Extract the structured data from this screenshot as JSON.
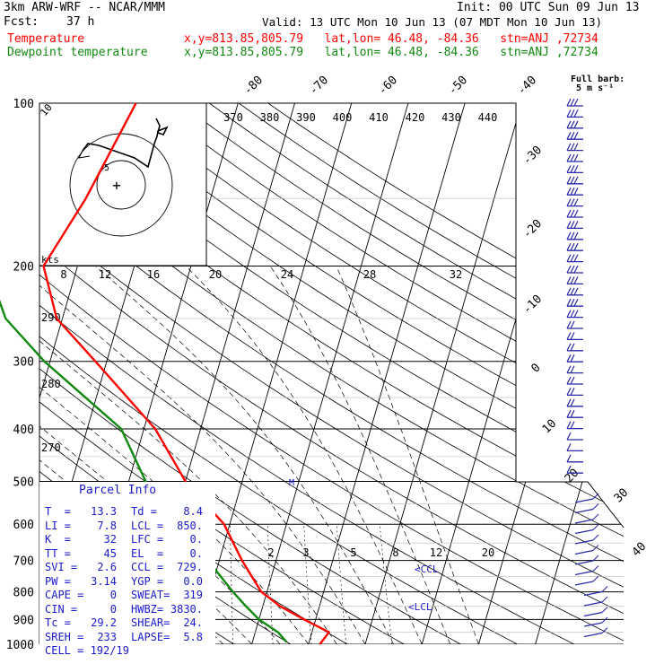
{
  "header": {
    "model": "3km ARW-WRF -- NCAR/MMM",
    "fcst_label": "Fcst:",
    "fcst_value": "37 h",
    "init": "Init: 00 UTC Sun 09 Jun 13",
    "valid": "Valid: 13 UTC Mon 10 Jun 13 (07 MDT Mon 10 Jun 13)",
    "temp_label": "Temperature",
    "dew_label": "Dewpoint temperature",
    "loc_line": "x,y=813.85,805.79   lat,lon= 46.48, -84.36   stn=ANJ ,72734",
    "barb_note_1": "Full barb:",
    "barb_note_2": "5 m s⁻¹"
  },
  "colors": {
    "temperature": "#ff0000",
    "dewpoint": "#118811",
    "blue": "#1a1acc",
    "wind": "#2a2aaa"
  },
  "chart_data": {
    "type": "line",
    "title": "",
    "y_scale": "log-pressure",
    "pressure_levels": [
      "100",
      "200",
      "300",
      "400",
      "500",
      "600",
      "700",
      "800",
      "900",
      "1000"
    ],
    "isotherm_labels": [
      "-80",
      "-70",
      "-60",
      "-50",
      "-40",
      "-30",
      "-20",
      "-10",
      "0",
      "10",
      "20",
      "30",
      "40"
    ],
    "theta_labels": [
      "370",
      "380",
      "390",
      "400",
      "410",
      "420",
      "430",
      "440"
    ],
    "theta_left_labels": [
      "290",
      "280",
      "270"
    ],
    "mixing_upper_labels": [
      "8",
      "12",
      "16",
      "20",
      "24",
      "28",
      "32"
    ],
    "mixing_lower_labels": [
      "2",
      "3",
      "5",
      "8",
      "12",
      "20"
    ],
    "hodo_units": "kts",
    "hodo_rings": [
      "5",
      "10"
    ],
    "level_marks": [
      "CCL",
      "LCL",
      "M"
    ],
    "series": [
      {
        "name": "Temperature",
        "points": [
          {
            "p": 1000,
            "t": 12
          },
          {
            "p": 950,
            "t": 13
          },
          {
            "p": 900,
            "t": 8
          },
          {
            "p": 850,
            "t": 3
          },
          {
            "p": 800,
            "t": -1
          },
          {
            "p": 700,
            "t": -6
          },
          {
            "p": 600,
            "t": -11
          },
          {
            "p": 500,
            "t": -20
          },
          {
            "p": 400,
            "t": -28
          },
          {
            "p": 300,
            "t": -42
          },
          {
            "p": 250,
            "t": -51
          },
          {
            "p": 200,
            "t": -56
          },
          {
            "p": 150,
            "t": -52
          },
          {
            "p": 100,
            "t": -48
          }
        ]
      },
      {
        "name": "Dewpoint temperature",
        "points": [
          {
            "p": 990,
            "t": 6
          },
          {
            "p": 950,
            "t": 4
          },
          {
            "p": 900,
            "t": 0
          },
          {
            "p": 850,
            "t": -3
          },
          {
            "p": 800,
            "t": -6
          },
          {
            "p": 700,
            "t": -12
          },
          {
            "p": 650,
            "t": -20
          },
          {
            "p": 600,
            "t": -38
          },
          {
            "p": 550,
            "t": -33
          },
          {
            "p": 500,
            "t": -27
          },
          {
            "p": 400,
            "t": -34
          },
          {
            "p": 300,
            "t": -51
          },
          {
            "p": 250,
            "t": -60
          },
          {
            "p": 200,
            "t": -66
          },
          {
            "p": 150,
            "t": -76
          },
          {
            "p": 100,
            "t": -82
          }
        ]
      }
    ]
  },
  "parcel_info": {
    "title": "Parcel Info",
    "rows": [
      {
        "a": "T  =",
        "av": "13.3",
        "b": "Td =",
        "bv": "8.4"
      },
      {
        "a": "LI =",
        "av": "7.8",
        "b": "LCL =",
        "bv": "850."
      },
      {
        "a": "K  =",
        "av": "32",
        "b": "LFC =",
        "bv": "0."
      },
      {
        "a": "TT =",
        "av": "45",
        "b": "EL  =",
        "bv": "0."
      },
      {
        "a": "SVI =",
        "av": "2.6",
        "b": "CCL =",
        "bv": "729."
      },
      {
        "a": "PW =",
        "av": "3.14",
        "b": "YGP =",
        "bv": "0.0"
      },
      {
        "a": "CAPE =",
        "av": "0",
        "b": "SWEAT=",
        "bv": "319"
      },
      {
        "a": "CIN =",
        "av": "0",
        "b": "HWBZ=",
        "bv": "3830."
      },
      {
        "a": "Tc =",
        "av": "29.2",
        "b": "SHEAR=",
        "bv": "24."
      },
      {
        "a": "SREH =",
        "av": "233",
        "b": "LAPSE=",
        "bv": "5.8"
      }
    ],
    "cell": "CELL = 192/19"
  }
}
